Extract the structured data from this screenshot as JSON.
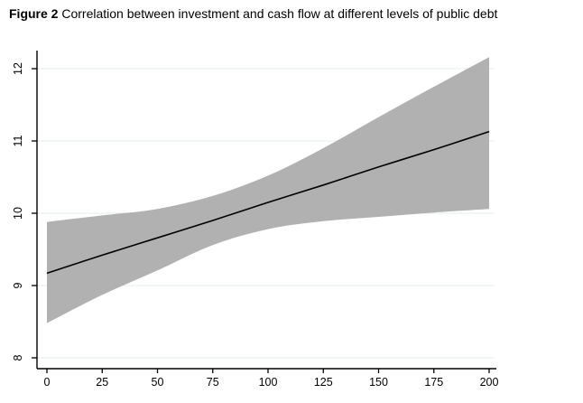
{
  "title": {
    "prefix": "Figure 2",
    "text": " Correlation between investment and cash flow at different levels of public debt"
  },
  "colors": {
    "background": "#ffffff",
    "band": "#b1b1b1",
    "fit_line": "#000000",
    "grid": "#ebf1f0",
    "axis": "#000000",
    "tick_text": "#000000"
  },
  "chart_data": {
    "type": "line",
    "title": "Figure 2 Correlation between investment and cash flow at different levels of public debt",
    "xlabel": "",
    "ylabel": "",
    "xlim": [
      0,
      200
    ],
    "ylim": [
      8,
      12.4
    ],
    "x_ticks": [
      0,
      25,
      50,
      75,
      100,
      125,
      150,
      175,
      200
    ],
    "y_ticks": [
      8,
      9,
      10,
      11,
      12
    ],
    "grid": "horizontal-only",
    "legend": "none",
    "x": [
      0,
      25,
      50,
      75,
      100,
      125,
      150,
      175,
      200
    ],
    "series": [
      {
        "name": "fitted-line",
        "values": [
          9.17,
          9.42,
          9.66,
          9.9,
          10.15,
          10.39,
          10.64,
          10.88,
          11.13
        ]
      },
      {
        "name": "ci-upper",
        "values": [
          9.88,
          9.97,
          10.06,
          10.24,
          10.52,
          10.9,
          11.33,
          11.75,
          12.16
        ]
      },
      {
        "name": "ci-lower",
        "values": [
          8.48,
          8.87,
          9.21,
          9.56,
          9.78,
          9.89,
          9.95,
          10.01,
          10.06
        ]
      }
    ]
  }
}
